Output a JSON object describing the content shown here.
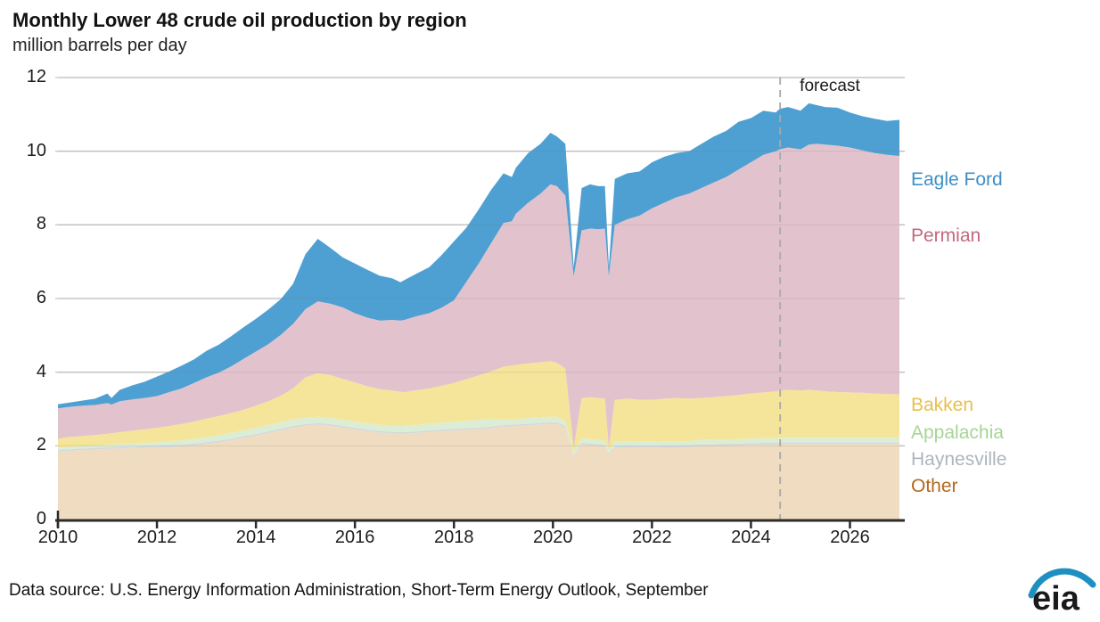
{
  "title": "Monthly Lower 48 crude oil production by region",
  "subtitle": "million barrels per day",
  "forecast_label": "forecast",
  "footer": {
    "source_text": "Data source: U.S. Energy Information Administration, Short-Term Energy Outlook, September",
    "logo_text": "eia"
  },
  "colors": {
    "gridline": "#c9c9c9",
    "gridline_overlay": "rgba(120,120,120,0.16)",
    "axis": "#2b2b2b",
    "forecast_line": "#a9a9a9",
    "logo_arc": "#1e8fc1",
    "logo_text": "#1a1a1a"
  },
  "chart_data": {
    "type": "area",
    "stacked": true,
    "title": "Monthly Lower 48 crude oil production by region",
    "ylabel": "million barrels per day",
    "ylim": [
      0,
      12
    ],
    "yticks": [
      0,
      2,
      4,
      6,
      8,
      10,
      12
    ],
    "xlim": [
      2010,
      2027
    ],
    "xticks": [
      2010,
      2012,
      2014,
      2016,
      2018,
      2020,
      2022,
      2024,
      2026
    ],
    "grid": true,
    "legend_position": "right",
    "forecast_start": 2024.59,
    "x": [
      2010,
      2010.25,
      2010.5,
      2010.75,
      2011,
      2011.08,
      2011.25,
      2011.5,
      2011.75,
      2012,
      2012.25,
      2012.5,
      2012.75,
      2013,
      2013.25,
      2013.5,
      2013.75,
      2014,
      2014.25,
      2014.5,
      2014.75,
      2015,
      2015.25,
      2015.5,
      2015.75,
      2016,
      2016.25,
      2016.5,
      2016.75,
      2016.92,
      2017,
      2017.25,
      2017.5,
      2017.75,
      2018,
      2018.25,
      2018.5,
      2018.75,
      2019,
      2019.17,
      2019.25,
      2019.5,
      2019.75,
      2019.95,
      2020.08,
      2020.25,
      2020.42,
      2020.58,
      2020.75,
      2020.92,
      2021.05,
      2021.13,
      2021.25,
      2021.5,
      2021.75,
      2022,
      2022.25,
      2022.5,
      2022.75,
      2023,
      2023.25,
      2023.5,
      2023.75,
      2024,
      2024.25,
      2024.5,
      2024.58,
      2024.75,
      2025,
      2025.17,
      2025.33,
      2025.5,
      2025.75,
      2026,
      2026.25,
      2026.5,
      2026.75,
      2027
    ],
    "series": [
      {
        "name": "Other",
        "fill": "#f0ddc1",
        "label_color": "#b4691e",
        "values": [
          1.85,
          1.87,
          1.89,
          1.9,
          1.92,
          1.92,
          1.93,
          1.94,
          1.95,
          1.95,
          1.97,
          1.99,
          2.02,
          2.06,
          2.1,
          2.15,
          2.22,
          2.28,
          2.35,
          2.42,
          2.5,
          2.55,
          2.58,
          2.55,
          2.5,
          2.45,
          2.4,
          2.36,
          2.34,
          2.33,
          2.33,
          2.35,
          2.38,
          2.4,
          2.42,
          2.44,
          2.46,
          2.48,
          2.52,
          2.53,
          2.54,
          2.56,
          2.58,
          2.6,
          2.6,
          2.5,
          1.7,
          2.05,
          2.02,
          2.0,
          1.98,
          1.76,
          1.95,
          1.96,
          1.95,
          1.95,
          1.96,
          1.96,
          1.97,
          2.0,
          2.0,
          2.01,
          2.02,
          2.03,
          2.04,
          2.04,
          2.05,
          2.05,
          2.05,
          2.05,
          2.05,
          2.05,
          2.05,
          2.05,
          2.05,
          2.05,
          2.05,
          2.05
        ]
      },
      {
        "name": "Haynesville",
        "fill": "#d2d8dd",
        "label_color": "#adb5be",
        "values": [
          0.04,
          0.04,
          0.04,
          0.04,
          0.04,
          0.04,
          0.04,
          0.04,
          0.04,
          0.04,
          0.04,
          0.04,
          0.04,
          0.04,
          0.04,
          0.04,
          0.04,
          0.04,
          0.04,
          0.04,
          0.04,
          0.04,
          0.04,
          0.04,
          0.04,
          0.04,
          0.04,
          0.04,
          0.04,
          0.04,
          0.04,
          0.04,
          0.04,
          0.04,
          0.04,
          0.04,
          0.04,
          0.04,
          0.04,
          0.04,
          0.04,
          0.04,
          0.04,
          0.04,
          0.04,
          0.04,
          0.04,
          0.04,
          0.04,
          0.04,
          0.04,
          0.04,
          0.04,
          0.04,
          0.04,
          0.04,
          0.04,
          0.04,
          0.04,
          0.04,
          0.04,
          0.04,
          0.04,
          0.04,
          0.04,
          0.04,
          0.04,
          0.04,
          0.04,
          0.04,
          0.04,
          0.04,
          0.04,
          0.04,
          0.04,
          0.04,
          0.04,
          0.04
        ]
      },
      {
        "name": "Appalachia",
        "fill": "#dcedd6",
        "label_color": "#a5d695",
        "values": [
          0.06,
          0.06,
          0.06,
          0.06,
          0.07,
          0.07,
          0.08,
          0.08,
          0.09,
          0.1,
          0.11,
          0.12,
          0.13,
          0.14,
          0.15,
          0.16,
          0.16,
          0.17,
          0.18,
          0.18,
          0.18,
          0.18,
          0.17,
          0.17,
          0.17,
          0.17,
          0.17,
          0.17,
          0.17,
          0.17,
          0.17,
          0.18,
          0.18,
          0.19,
          0.2,
          0.2,
          0.21,
          0.21,
          0.15,
          0.15,
          0.15,
          0.15,
          0.15,
          0.15,
          0.15,
          0.14,
          0.08,
          0.12,
          0.12,
          0.12,
          0.12,
          0.08,
          0.12,
          0.12,
          0.12,
          0.12,
          0.12,
          0.12,
          0.12,
          0.12,
          0.12,
          0.12,
          0.12,
          0.13,
          0.13,
          0.13,
          0.13,
          0.13,
          0.13,
          0.13,
          0.13,
          0.13,
          0.13,
          0.13,
          0.13,
          0.13,
          0.13,
          0.13
        ]
      },
      {
        "name": "Bakken",
        "fill": "#f5e59a",
        "label_color": "#e8c04f",
        "values": [
          0.25,
          0.27,
          0.28,
          0.29,
          0.3,
          0.31,
          0.32,
          0.35,
          0.37,
          0.4,
          0.42,
          0.44,
          0.47,
          0.5,
          0.52,
          0.54,
          0.56,
          0.6,
          0.64,
          0.72,
          0.84,
          1.09,
          1.18,
          1.16,
          1.11,
          1.06,
          1.01,
          0.97,
          0.95,
          0.93,
          0.92,
          0.94,
          0.96,
          1.0,
          1.05,
          1.13,
          1.2,
          1.29,
          1.44,
          1.46,
          1.47,
          1.49,
          1.5,
          1.51,
          1.46,
          1.42,
          0.12,
          1.09,
          1.14,
          1.14,
          1.14,
          0.07,
          1.14,
          1.16,
          1.14,
          1.14,
          1.16,
          1.18,
          1.15,
          1.14,
          1.16,
          1.18,
          1.2,
          1.22,
          1.24,
          1.27,
          1.28,
          1.3,
          1.28,
          1.3,
          1.28,
          1.26,
          1.24,
          1.23,
          1.22,
          1.2,
          1.19,
          1.18
        ]
      },
      {
        "name": "Permian",
        "fill": "#e2c3cd",
        "label_color": "#c4687c",
        "values": [
          0.82,
          0.82,
          0.82,
          0.82,
          0.83,
          0.78,
          0.84,
          0.85,
          0.85,
          0.86,
          0.92,
          0.97,
          1.05,
          1.12,
          1.18,
          1.27,
          1.38,
          1.47,
          1.55,
          1.65,
          1.75,
          1.85,
          1.95,
          1.94,
          1.94,
          1.88,
          1.86,
          1.86,
          1.92,
          1.93,
          1.96,
          2.01,
          2.04,
          2.12,
          2.24,
          2.64,
          3.04,
          3.48,
          3.9,
          3.92,
          4.1,
          4.36,
          4.58,
          4.8,
          4.8,
          4.7,
          4.66,
          4.55,
          4.58,
          4.58,
          4.62,
          4.65,
          4.75,
          4.87,
          5.0,
          5.2,
          5.32,
          5.45,
          5.57,
          5.7,
          5.83,
          5.95,
          6.12,
          6.28,
          6.45,
          6.52,
          6.55,
          6.58,
          6.55,
          6.66,
          6.7,
          6.7,
          6.69,
          6.65,
          6.58,
          6.53,
          6.49,
          6.47
        ]
      },
      {
        "name": "Eagle Ford",
        "fill": "#4fa0d2",
        "label_color": "#3e8fc6",
        "values": [
          0.11,
          0.12,
          0.14,
          0.17,
          0.26,
          0.18,
          0.31,
          0.38,
          0.44,
          0.53,
          0.56,
          0.62,
          0.64,
          0.72,
          0.76,
          0.82,
          0.86,
          0.89,
          0.94,
          0.97,
          1.09,
          1.49,
          1.7,
          1.52,
          1.36,
          1.35,
          1.3,
          1.22,
          1.13,
          1.04,
          1.08,
          1.16,
          1.25,
          1.43,
          1.6,
          1.47,
          1.47,
          1.45,
          1.35,
          1.2,
          1.25,
          1.35,
          1.35,
          1.4,
          1.35,
          1.4,
          0.25,
          1.15,
          1.2,
          1.17,
          1.15,
          0.25,
          1.25,
          1.25,
          1.2,
          1.25,
          1.25,
          1.2,
          1.15,
          1.2,
          1.25,
          1.25,
          1.3,
          1.2,
          1.2,
          1.05,
          1.1,
          1.1,
          1.05,
          1.12,
          1.05,
          1.02,
          1.03,
          0.95,
          0.93,
          0.93,
          0.92,
          0.98
        ]
      }
    ]
  }
}
